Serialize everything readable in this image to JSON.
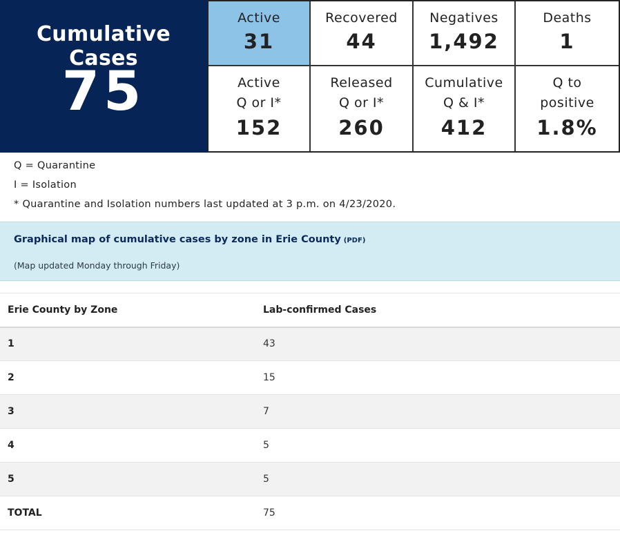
{
  "cumulative": {
    "label": "Cumulative Cases",
    "value": "75"
  },
  "stats_row1": [
    {
      "label": "Active",
      "value": "31"
    },
    {
      "label": "Recovered",
      "value": "44"
    },
    {
      "label": "Negatives",
      "value": "1,492"
    },
    {
      "label": "Deaths",
      "value": "1"
    }
  ],
  "stats_row2": [
    {
      "label": "Active\nQ or I*",
      "value": "152"
    },
    {
      "label": "Released\nQ or I*",
      "value": "260"
    },
    {
      "label": "Cumulative\nQ & I*",
      "value": "412"
    },
    {
      "label": "Q to\npositive",
      "value": "1.8%"
    }
  ],
  "notes": [
    "Q = Quarantine",
    "I = Isolation",
    "* Quarantine and Isolation numbers last updated at 3 p.m. on 4/23/2020."
  ],
  "map": {
    "link_text": "Graphical map of cumulative cases by zone in Erie County",
    "link_suffix": "(PDF)",
    "note": "(Map updated Monday through Friday)"
  },
  "zone_table": {
    "headers": [
      "Erie County by Zone",
      "Lab-confirmed Cases"
    ],
    "rows": [
      {
        "zone": "1",
        "cases": "43"
      },
      {
        "zone": "2",
        "cases": "15"
      },
      {
        "zone": "3",
        "cases": "7"
      },
      {
        "zone": "4",
        "cases": "5"
      },
      {
        "zone": "5",
        "cases": "5"
      },
      {
        "zone": "TOTAL",
        "cases": "75"
      }
    ]
  },
  "colors": {
    "navy": "#062456",
    "active_highlight": "#8ec3e8",
    "map_box": "#d3ecf3"
  }
}
